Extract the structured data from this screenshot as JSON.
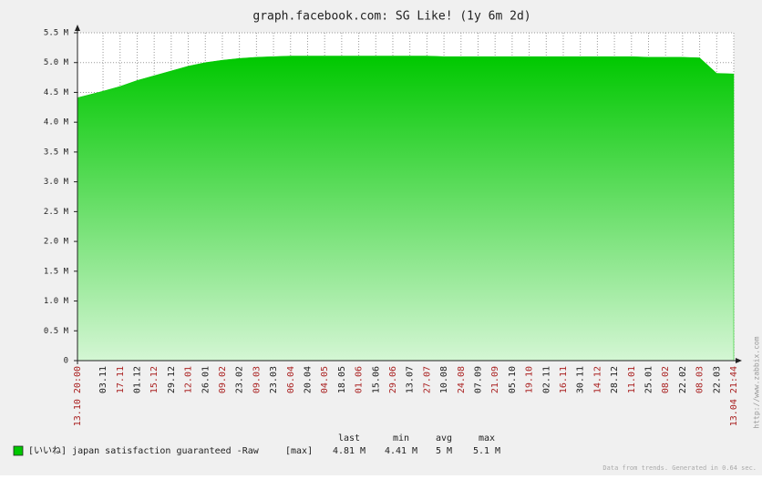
{
  "chart_data": {
    "type": "area",
    "title": "graph.facebook.com: SG Like! (1y 6m 2d)",
    "x": [
      "13.10 20:00",
      "03.11",
      "17.11",
      "01.12",
      "15.12",
      "29.12",
      "12.01",
      "26.01",
      "09.02",
      "23.02",
      "09.03",
      "23.03",
      "06.04",
      "20.04",
      "04.05",
      "18.05",
      "01.06",
      "15.06",
      "29.06",
      "13.07",
      "27.07",
      "10.08",
      "24.08",
      "07.09",
      "21.09",
      "05.10",
      "19.10",
      "02.11",
      "16.11",
      "30.11",
      "14.12",
      "28.12",
      "11.01",
      "25.01",
      "08.02",
      "22.02",
      "08.03",
      "22.03",
      "13.04 21:44"
    ],
    "x_label_colors": [
      "#aa2222",
      "#222222",
      "#aa2222",
      "#222222",
      "#aa2222",
      "#222222",
      "#aa2222",
      "#222222",
      "#aa2222",
      "#222222",
      "#aa2222",
      "#222222",
      "#aa2222",
      "#222222",
      "#aa2222",
      "#222222",
      "#aa2222",
      "#222222",
      "#aa2222",
      "#222222",
      "#aa2222",
      "#222222",
      "#aa2222",
      "#222222",
      "#aa2222",
      "#222222",
      "#aa2222",
      "#222222",
      "#aa2222",
      "#222222",
      "#aa2222",
      "#222222",
      "#aa2222",
      "#222222",
      "#aa2222",
      "#222222",
      "#aa2222",
      "#222222",
      "#aa2222"
    ],
    "series": [
      {
        "name": "[いいね] japan satisfaction guaranteed -Raw",
        "color": "#00c800",
        "values": [
          4410000,
          4520000,
          4600000,
          4700000,
          4780000,
          4860000,
          4940000,
          5000000,
          5040000,
          5070000,
          5090000,
          5100000,
          5110000,
          5110000,
          5110000,
          5110000,
          5110000,
          5110000,
          5110000,
          5110000,
          5110000,
          5100000,
          5100000,
          5100000,
          5100000,
          5100000,
          5100000,
          5100000,
          5100000,
          5100000,
          5100000,
          5100000,
          5100000,
          5090000,
          5090000,
          5090000,
          5080000,
          4820000,
          4810000
        ]
      }
    ],
    "legend_function": "[max]",
    "stat_headers": [
      "last",
      "min",
      "avg",
      "max"
    ],
    "stats": [
      {
        "value": 4810000,
        "label": "4.81 M"
      },
      {
        "value": 4410000,
        "label": "4.41 M"
      },
      {
        "value": 5000000,
        "label": "5 M"
      },
      {
        "value": 5100000,
        "label": "5.1 M"
      }
    ],
    "ylim": [
      0,
      5500000
    ],
    "yticks": [
      0,
      {
        "value": 500000,
        "label": "0.5 M"
      },
      {
        "value": 1000000,
        "label": "1.0 M"
      },
      {
        "value": 1500000,
        "label": "1.5 M"
      },
      {
        "value": 2000000,
        "label": "2.0 M"
      },
      {
        "value": 2500000,
        "label": "2.5 M"
      },
      {
        "value": 3000000,
        "label": "3.0 M"
      },
      {
        "value": 3500000,
        "label": "3.5 M"
      },
      {
        "value": 4000000,
        "label": "4.0 M"
      },
      {
        "value": 4500000,
        "label": "4.5 M"
      },
      {
        "value": 5000000,
        "label": "5.0 M"
      },
      {
        "value": 5500000,
        "label": "5.5 M"
      }
    ],
    "grid": true,
    "side_text": "http://www.zabbix.com",
    "footer": "Data from trends. Generated in 0.64 sec."
  }
}
